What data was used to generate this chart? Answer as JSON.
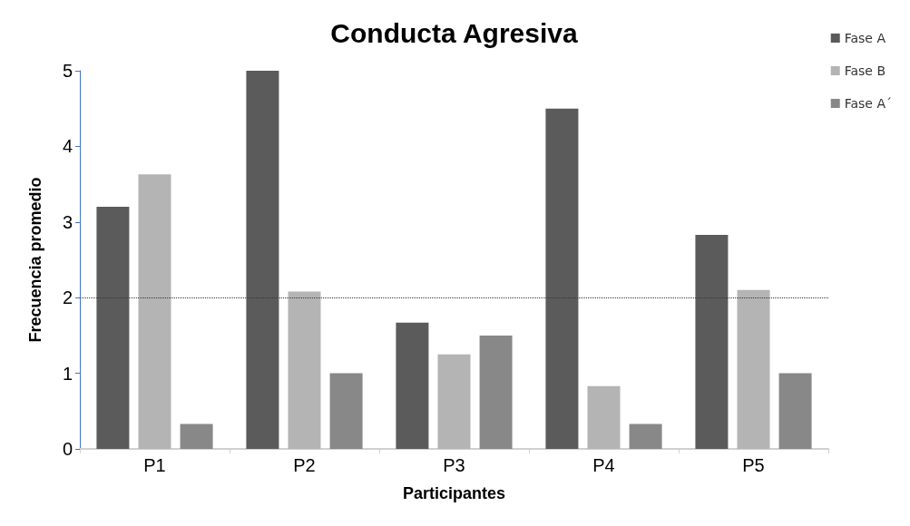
{
  "chart_data": {
    "type": "bar",
    "title": "Conducta Agresiva",
    "xlabel": "Participantes",
    "ylabel": "Frecuencia promedio",
    "categories": [
      "P1",
      "P2",
      "P3",
      "P4",
      "P5"
    ],
    "series": [
      {
        "name": "Fase A",
        "color": "#5b5b5b",
        "values": [
          3.2,
          5,
          1.67,
          4.5,
          2.83
        ]
      },
      {
        "name": "Fase B",
        "color": "#b4b4b4",
        "values": [
          3.63,
          2.08,
          1.25,
          0.83,
          2.1
        ]
      },
      {
        "name": "Fase A´",
        "color": "#888888",
        "values": [
          0.33,
          1,
          1.5,
          0.33,
          1
        ]
      }
    ],
    "ylim": [
      0,
      5
    ],
    "yticks": [
      0,
      1,
      2,
      3,
      4,
      5
    ],
    "grid": false,
    "legend": "top right",
    "ref_lines": [
      {
        "axis": "y",
        "value": 2,
        "color": "#333333",
        "line_style": "dotted"
      }
    ]
  }
}
